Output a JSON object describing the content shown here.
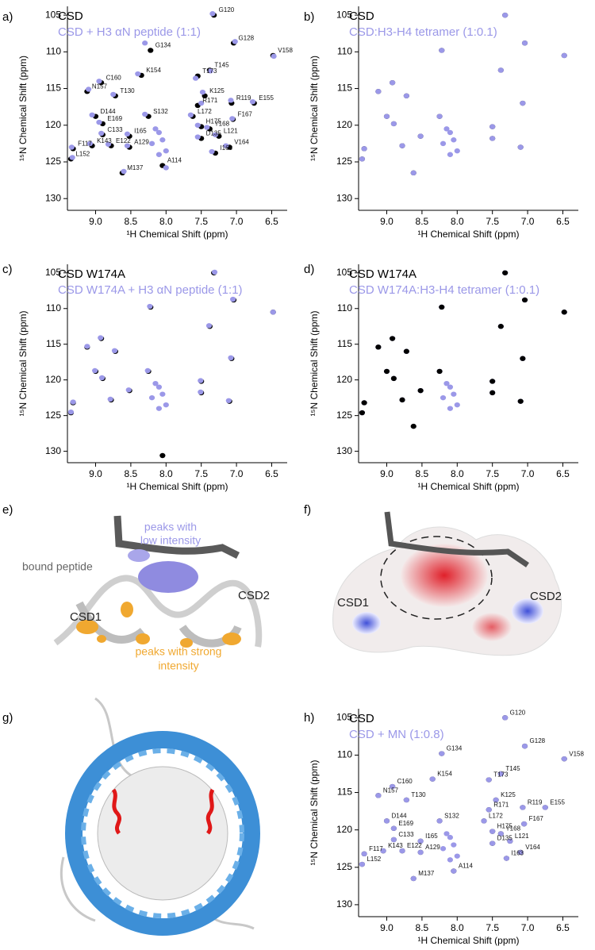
{
  "chart_data": [
    {
      "type": "scatter",
      "panel_label": "a)",
      "xlabel": "¹H Chemical Shift (ppm)",
      "ylabel": "¹⁵N Chemical Shift (ppm)",
      "xlim": [
        9.4,
        6.28
      ],
      "ylim": [
        103.8,
        131.6
      ],
      "xticks": [
        {
          "value": 9,
          "label": "9.0"
        },
        8.5,
        {
          "value": 8,
          "label": "8.0"
        },
        7.5,
        {
          "value": 7,
          "label": "7.0"
        },
        6.5
      ],
      "yticks": [
        105,
        110,
        115,
        120,
        125,
        130
      ],
      "point_labels": [
        "G120",
        "G134",
        "G128",
        "V158",
        "T145",
        "T173",
        "K154",
        "C160",
        "N157",
        "T130",
        "K125",
        "R171",
        "R119",
        "E155",
        "D144",
        "S132",
        "L172",
        "E169",
        "F167",
        "H175",
        "Y168",
        "I165",
        "C133",
        "L121",
        "D135",
        "F117",
        "K143",
        "E122",
        "A129",
        "V164",
        "I163",
        "L152",
        "M137",
        "A114"
      ],
      "series": [
        {
          "name": "CSD",
          "color": "#000000",
          "x": [
            7.32,
            8.22,
            7.04,
            6.48,
            7.38,
            7.55,
            8.35,
            8.92,
            9.12,
            8.72,
            7.45,
            7.55,
            7.07,
            6.75,
            9.0,
            8.25,
            7.62,
            8.9,
            7.05,
            7.5,
            7.38,
            8.52,
            8.9,
            7.25,
            7.5,
            9.32,
            9.05,
            8.78,
            8.52,
            7.1,
            7.3,
            9.35,
            8.62,
            8.05
          ],
          "values": [
            105.0,
            109.8,
            108.8,
            110.5,
            112.5,
            113.3,
            113.2,
            114.2,
            115.4,
            116.0,
            116.0,
            117.3,
            117.0,
            117.0,
            118.8,
            118.8,
            118.8,
            119.8,
            119.2,
            120.2,
            120.5,
            121.5,
            121.3,
            121.5,
            121.8,
            123.2,
            122.8,
            122.8,
            123.0,
            123.0,
            123.8,
            124.6,
            126.5,
            125.5
          ]
        },
        {
          "name": "CSD + H3 αN peptide (1:1)",
          "color": "#9b98e8",
          "x": [
            7.34,
            8.3,
            7.02,
            6.47,
            7.37,
            7.58,
            8.4,
            8.95,
            9.1,
            8.75,
            7.48,
            7.5,
            7.08,
            6.77,
            9.05,
            8.3,
            7.65,
            8.95,
            7.06,
            7.55,
            7.42,
            8.55,
            8.92,
            7.3,
            7.55,
            9.34,
            9.08,
            8.82,
            8.55,
            7.15,
            7.35,
            9.33,
            8.6,
            8.0,
            8.1,
            8.05,
            8.15,
            8.0,
            8.2,
            8.1
          ],
          "values": [
            104.8,
            108.8,
            108.6,
            110.6,
            112.6,
            113.6,
            113.0,
            114.0,
            115.1,
            115.8,
            115.5,
            117.0,
            116.6,
            116.8,
            118.6,
            118.5,
            118.6,
            119.6,
            119.1,
            120.0,
            120.3,
            121.2,
            121.1,
            121.3,
            121.6,
            123.0,
            122.5,
            122.6,
            122.8,
            122.8,
            123.6,
            124.4,
            126.3,
            125.8,
            121.0,
            122.0,
            120.5,
            123.5,
            122.5,
            124.0
          ]
        }
      ]
    },
    {
      "type": "scatter",
      "panel_label": "b)",
      "xlabel": "¹H Chemical Shift (ppm)",
      "ylabel": "¹⁵N Chemical Shift (ppm)",
      "xlim": [
        9.4,
        6.28
      ],
      "ylim": [
        103.8,
        131.6
      ],
      "xticks": [
        {
          "value": 9,
          "label": "9.0"
        },
        8.5,
        {
          "value": 8,
          "label": "8.0"
        },
        7.5,
        {
          "value": 7,
          "label": "7.0"
        },
        6.5
      ],
      "yticks": [
        105,
        110,
        115,
        120,
        125,
        130
      ],
      "series": [
        {
          "name": "CSD",
          "color": "#000000",
          "x": [
            7.32,
            8.22,
            7.04,
            6.48,
            7.38,
            8.92,
            9.12,
            8.72,
            7.07,
            9.0,
            8.25,
            8.9,
            7.5,
            8.52,
            7.5,
            9.32,
            8.78,
            7.1,
            9.35,
            8.62
          ],
          "values": [
            105.0,
            109.8,
            108.8,
            110.5,
            112.5,
            114.2,
            115.4,
            116.0,
            117.0,
            118.8,
            118.8,
            119.8,
            120.2,
            121.5,
            121.8,
            123.2,
            122.8,
            123.0,
            124.6,
            126.5
          ]
        },
        {
          "name": "CSD:H3-H4 tetramer (1:0.1)",
          "color": "#9b98e8",
          "x": [
            7.32,
            8.22,
            7.04,
            6.48,
            7.38,
            8.92,
            9.12,
            8.72,
            7.07,
            9.0,
            8.25,
            8.9,
            7.5,
            8.52,
            7.5,
            9.32,
            8.78,
            7.1,
            9.35,
            8.62,
            8.1,
            8.05,
            8.15,
            8.0,
            8.2,
            8.1
          ],
          "values": [
            105.0,
            109.8,
            108.8,
            110.5,
            112.5,
            114.2,
            115.4,
            116.0,
            117.0,
            118.8,
            118.8,
            119.8,
            120.2,
            121.5,
            121.8,
            123.2,
            122.8,
            123.0,
            124.6,
            126.5,
            121.0,
            122.0,
            120.5,
            123.5,
            122.5,
            124.0
          ]
        }
      ]
    },
    {
      "type": "scatter",
      "panel_label": "c)",
      "xlabel": "¹H Chemical Shift (ppm)",
      "ylabel": "¹⁵N Chemical Shift (ppm)",
      "xlim": [
        9.4,
        6.28
      ],
      "ylim": [
        103.8,
        131.6
      ],
      "xticks": [
        {
          "value": 9,
          "label": "9.0"
        },
        8.5,
        {
          "value": 8,
          "label": "8.0"
        },
        7.5,
        {
          "value": 7,
          "label": "7.0"
        },
        6.5
      ],
      "yticks": [
        105,
        110,
        115,
        120,
        125,
        130
      ],
      "series": [
        {
          "name": "CSD W174A",
          "color": "#000000",
          "x": [
            7.32,
            8.22,
            7.04,
            6.48,
            7.38,
            8.92,
            9.12,
            8.72,
            7.07,
            9.0,
            8.25,
            8.9,
            7.5,
            8.52,
            7.5,
            9.32,
            8.78,
            7.1,
            9.35,
            8.05
          ],
          "values": [
            105.0,
            109.8,
            108.8,
            110.5,
            112.5,
            114.2,
            115.4,
            116.0,
            117.0,
            118.8,
            118.8,
            119.8,
            120.2,
            121.5,
            121.8,
            123.2,
            122.8,
            123.0,
            124.6,
            130.6
          ]
        },
        {
          "name": "CSD W174A + H3 αN peptide (1:1)",
          "color": "#9b98e8",
          "x": [
            7.31,
            8.23,
            7.05,
            6.48,
            7.39,
            8.93,
            9.12,
            8.73,
            7.08,
            9.01,
            8.26,
            8.91,
            7.51,
            8.53,
            7.51,
            9.32,
            8.79,
            7.11,
            9.35,
            8.1,
            8.05,
            8.15,
            8.0,
            8.2,
            8.1
          ],
          "values": [
            104.9,
            109.7,
            108.7,
            110.5,
            112.4,
            114.1,
            115.3,
            115.9,
            116.9,
            118.7,
            118.7,
            119.7,
            120.1,
            121.4,
            121.7,
            123.1,
            122.7,
            122.9,
            124.5,
            121.0,
            122.0,
            120.5,
            123.5,
            122.5,
            124.0
          ]
        }
      ]
    },
    {
      "type": "scatter",
      "panel_label": "d)",
      "xlabel": "¹H Chemical Shift (ppm)",
      "ylabel": "¹⁵N Chemical Shift (ppm)",
      "xlim": [
        9.4,
        6.28
      ],
      "ylim": [
        103.8,
        131.6
      ],
      "xticks": [
        {
          "value": 9,
          "label": "9.0"
        },
        8.5,
        {
          "value": 8,
          "label": "8.0"
        },
        7.5,
        {
          "value": 7,
          "label": "7.0"
        },
        6.5
      ],
      "yticks": [
        105,
        110,
        115,
        120,
        125,
        130
      ],
      "series": [
        {
          "name": "CSD W174A:H3-H4 tetramer (1:0.1)",
          "color": "#9b98e8",
          "x": [
            7.32,
            8.22,
            7.04,
            6.48,
            7.38,
            8.92,
            9.12,
            8.72,
            7.07,
            9.0,
            8.25,
            8.9,
            7.5,
            8.52,
            7.5,
            9.32,
            8.78,
            7.1,
            9.35,
            8.1,
            8.05,
            8.15,
            8.0,
            8.2,
            8.1
          ],
          "values": [
            105.0,
            109.8,
            108.8,
            110.5,
            112.5,
            114.2,
            115.4,
            116.0,
            117.0,
            118.8,
            118.8,
            119.8,
            120.2,
            121.5,
            121.8,
            123.2,
            122.8,
            123.0,
            124.6,
            121.0,
            122.0,
            120.5,
            123.5,
            122.5,
            124.0
          ]
        },
        {
          "name": "CSD W174A",
          "color": "#000000",
          "x": [
            7.32,
            8.22,
            7.04,
            6.48,
            7.38,
            8.92,
            9.12,
            8.72,
            7.07,
            9.0,
            8.25,
            8.9,
            7.5,
            8.52,
            7.5,
            9.32,
            8.78,
            7.1,
            9.35,
            8.62
          ],
          "values": [
            105.0,
            109.8,
            108.8,
            110.5,
            112.5,
            114.2,
            115.4,
            116.0,
            117.0,
            118.8,
            118.8,
            119.8,
            120.2,
            121.5,
            121.8,
            123.2,
            122.8,
            123.0,
            124.6,
            126.5
          ]
        }
      ]
    },
    {
      "type": "scatter",
      "panel_label": "h)",
      "xlabel": "¹H Chemical Shift (ppm)",
      "ylabel": "¹⁵N Chemical Shift (ppm)",
      "xlim": [
        9.4,
        6.28
      ],
      "ylim": [
        103.8,
        131.6
      ],
      "xticks": [
        {
          "value": 9,
          "label": "9.0"
        },
        8.5,
        {
          "value": 8,
          "label": "8.0"
        },
        7.5,
        {
          "value": 7,
          "label": "7.0"
        },
        6.5
      ],
      "yticks": [
        105,
        110,
        115,
        120,
        125,
        130
      ],
      "point_labels": [
        "G120",
        "G134",
        "G128",
        "V158",
        "T145",
        "T173",
        "K154",
        "C160",
        "N157",
        "T130",
        "K125",
        "R171",
        "R119",
        "E155",
        "D144",
        "S132",
        "L172",
        "E169",
        "F167",
        "H175",
        "Y168",
        "I165",
        "C133",
        "L121",
        "D135",
        "F117",
        "K143",
        "E122",
        "A129",
        "V164",
        "I163",
        "L152",
        "M137",
        "A114"
      ],
      "series": [
        {
          "name": "CSD",
          "color": "#000000",
          "x": [
            7.32,
            8.22,
            7.04,
            6.48,
            7.38,
            7.55,
            8.35,
            8.92,
            9.12,
            8.72,
            7.45,
            7.55,
            7.07,
            6.75,
            9.0,
            8.25,
            7.62,
            8.9,
            7.05,
            7.5,
            7.38,
            8.52,
            8.9,
            7.25,
            7.5,
            9.32,
            9.05,
            8.78,
            8.52,
            7.1,
            7.3,
            9.35,
            8.62,
            8.05
          ],
          "values": [
            105.0,
            109.8,
            108.8,
            110.5,
            112.5,
            113.3,
            113.2,
            114.2,
            115.4,
            116.0,
            116.0,
            117.3,
            117.0,
            117.0,
            118.8,
            118.8,
            118.8,
            119.8,
            119.2,
            120.2,
            120.5,
            121.5,
            121.3,
            121.5,
            121.8,
            123.2,
            122.8,
            122.8,
            123.0,
            123.0,
            123.8,
            124.6,
            126.5,
            125.5
          ]
        },
        {
          "name": "CSD + MN (1:0.8)",
          "color": "#9b98e8",
          "x": [
            7.32,
            8.22,
            7.04,
            6.48,
            7.38,
            7.55,
            8.35,
            8.92,
            9.12,
            8.72,
            7.45,
            7.55,
            7.07,
            6.75,
            9.0,
            8.25,
            7.62,
            8.9,
            7.05,
            7.5,
            7.38,
            8.52,
            8.9,
            7.25,
            7.5,
            9.32,
            9.05,
            8.78,
            8.52,
            7.1,
            7.3,
            9.35,
            8.62,
            8.05,
            8.1,
            8.05,
            8.15,
            8.0,
            8.2,
            8.1
          ],
          "values": [
            105.0,
            109.8,
            108.8,
            110.5,
            112.5,
            113.3,
            113.2,
            114.2,
            115.4,
            116.0,
            116.0,
            117.3,
            117.0,
            117.0,
            118.8,
            118.8,
            118.8,
            119.8,
            119.2,
            120.2,
            120.5,
            121.5,
            121.3,
            121.5,
            121.8,
            123.2,
            122.8,
            122.8,
            123.0,
            123.0,
            123.8,
            124.6,
            126.5,
            125.5,
            121.0,
            122.0,
            120.5,
            123.5,
            122.5,
            124.0
          ]
        }
      ]
    }
  ],
  "structures": [
    {
      "panel_label": "e)",
      "labels": [
        "peaks with",
        "low intensity",
        "bound peptide",
        "CSD1",
        "CSD2",
        "peaks with strong",
        "intensity"
      ]
    },
    {
      "panel_label": "f)",
      "labels": [
        "CSD1",
        "CSD2"
      ]
    },
    {
      "panel_label": "g)",
      "labels": []
    }
  ]
}
